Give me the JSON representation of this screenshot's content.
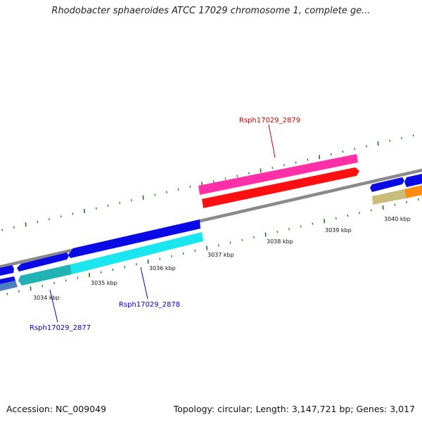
{
  "title": "Rhodobacter sphaeroides ATCC 17029 chromosome 1, complete ge...",
  "footer": {
    "accession": "Accession: NC_009049",
    "summary": "Topology: circular; Length: 3,147,721 bp; Genes: 3,017"
  },
  "ruler": {
    "unit": "kbp",
    "ticks": [
      "3034 kbp",
      "3035 kbp",
      "3036 kbp",
      "3037 kbp",
      "3038 kbp",
      "3039 kbp",
      "3040 kbp"
    ]
  },
  "gene_labels": [
    {
      "id": "Rsph17029_2877",
      "color": "#0000cc"
    },
    {
      "id": "Rsph17029_2878",
      "color": "#0000cc"
    },
    {
      "id": "Rsph17029_2879",
      "color": "#cc0000"
    }
  ],
  "colors": {
    "backbone": "#8c8c8c",
    "forward_cds": "#0a0ae6",
    "forward_highlight": "#ff2fa8",
    "reverse_cds": "#19d8e0",
    "reverse_highlight": "#ff1010",
    "orange_gene": "#ff8c10",
    "khaki_gene": "#c9bd7a",
    "tick_major": "#1a7a1a"
  }
}
